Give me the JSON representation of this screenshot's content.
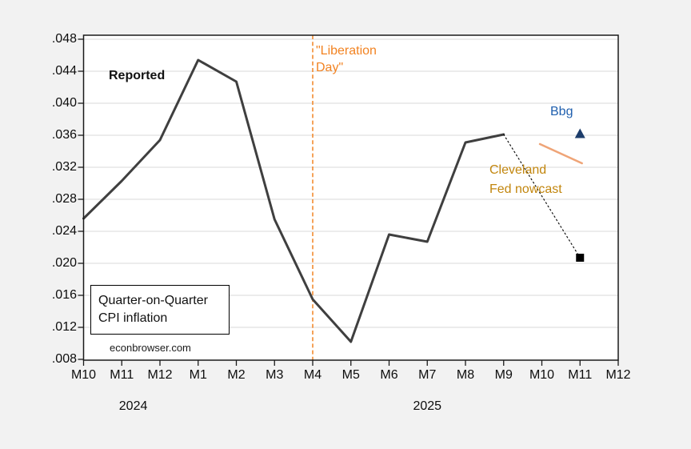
{
  "chart_data": {
    "type": "line",
    "title": "",
    "xlabel": "",
    "ylabel": "",
    "ylim": [
      0.008,
      0.048
    ],
    "ytick_interval": 0.004,
    "ytick_labels": [
      ".008",
      ".012",
      ".016",
      ".020",
      ".024",
      ".028",
      ".032",
      ".036",
      ".040",
      ".044",
      ".048"
    ],
    "categories": [
      "M10",
      "M11",
      "M12",
      "M1",
      "M2",
      "M3",
      "M4",
      "M5",
      "M6",
      "M7",
      "M8",
      "M9",
      "M10",
      "M11",
      "M12"
    ],
    "year_labels": [
      {
        "text": "2024",
        "at_category_index": 1.3
      },
      {
        "text": "2025",
        "at_category_index": 9.0
      }
    ],
    "grid": "horizontal",
    "legend_position": "none",
    "series": [
      {
        "name": "Reported quarter-on-quarter CPI inflation",
        "color": "#3f3f3f",
        "line_style": "solid",
        "line_width": 3,
        "category_indexes": [
          0,
          1,
          2,
          3,
          4,
          5,
          6,
          7,
          8,
          9,
          10,
          11
        ],
        "values": [
          0.0256,
          0.0303,
          0.0354,
          0.0454,
          0.0427,
          0.0255,
          0.0155,
          0.0102,
          0.0236,
          0.0227,
          0.0351,
          0.0361
        ]
      },
      {
        "name": "Dotted projection to Cleveland Fed nowcast",
        "color": "#111111",
        "line_style": "dotted",
        "line_width": 1.2,
        "category_indexes": [
          11,
          13
        ],
        "values": [
          0.0361,
          0.0207
        ]
      },
      {
        "name": "Cleveland Fed nowcast segment",
        "color": "#efa477",
        "line_style": "solid",
        "line_width": 2.6,
        "category_indexes": [
          11.95,
          13.05
        ],
        "values": [
          0.0349,
          0.0325
        ]
      }
    ],
    "markers": [
      {
        "name": "bbg-estimate",
        "shape": "triangle-up",
        "color": "#1d3d6b",
        "category_index": 13,
        "value": 0.0362
      },
      {
        "name": "cleveland-fed-nowcast-point",
        "shape": "square",
        "color": "#000000",
        "category_index": 13,
        "value": 0.0207
      }
    ],
    "vline": {
      "category_index": 6,
      "color": "#f28322",
      "style": "dashed"
    }
  },
  "annotations": {
    "reported": "Reported",
    "liberation_day": "\"Liberation\nDay\"",
    "bbg": "Bbg",
    "cleveland_fed": "Cleveland\nFed nowcast",
    "qoq_box": "Quarter-on-Quarter\nCPI inflation",
    "credit": "econbrowser.com"
  },
  "colors": {
    "background": "#f2f2f2",
    "plot_background": "#ffffff",
    "frame": "#1a1a1a",
    "gridline": "#d9d9d9",
    "reported_line": "#3f3f3f",
    "liberation_orange": "#f28322",
    "cleveland_text": "#c2860e",
    "nowcast_segment": "#efa477",
    "bbg_text": "#1f5fae",
    "bbg_triangle": "#1d3d6b"
  }
}
